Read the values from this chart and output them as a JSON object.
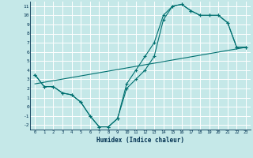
{
  "xlabel": "Humidex (Indice chaleur)",
  "xlim": [
    -0.5,
    23.5
  ],
  "ylim": [
    -2.5,
    11.5
  ],
  "xticks": [
    0,
    1,
    2,
    3,
    4,
    5,
    6,
    7,
    8,
    9,
    10,
    11,
    12,
    13,
    14,
    15,
    16,
    17,
    18,
    19,
    20,
    21,
    22,
    23
  ],
  "yticks": [
    -2,
    -1,
    0,
    1,
    2,
    3,
    4,
    5,
    6,
    7,
    8,
    9,
    10,
    11
  ],
  "background_color": "#c5e8e8",
  "grid_color": "#ffffff",
  "line_color": "#007070",
  "line1_x": [
    0,
    1,
    2,
    3,
    4,
    5,
    6,
    7,
    8,
    9,
    10,
    11,
    12,
    13,
    14,
    15,
    16,
    17,
    18,
    19,
    20,
    21,
    22,
    23
  ],
  "line1_y": [
    3.5,
    2.2,
    2.2,
    1.5,
    1.3,
    0.5,
    -1.0,
    -2.2,
    -2.2,
    -1.3,
    2.0,
    3.0,
    4.0,
    5.5,
    9.5,
    11.0,
    11.2,
    10.5,
    10.0,
    10.0,
    10.0,
    9.2,
    6.5,
    6.5
  ],
  "line2_x": [
    0,
    1,
    2,
    3,
    4,
    5,
    6,
    7,
    8,
    9,
    10,
    11,
    12,
    13,
    14,
    15,
    16,
    17,
    18,
    19,
    20,
    21,
    22,
    23
  ],
  "line2_y": [
    3.5,
    2.2,
    2.2,
    1.5,
    1.3,
    0.5,
    -1.0,
    -2.2,
    -2.2,
    -1.3,
    2.5,
    4.0,
    5.5,
    7.0,
    10.0,
    11.0,
    11.2,
    10.5,
    10.0,
    10.0,
    10.0,
    9.2,
    6.5,
    6.5
  ],
  "line3_x": [
    0,
    23
  ],
  "line3_y": [
    2.5,
    6.5
  ]
}
